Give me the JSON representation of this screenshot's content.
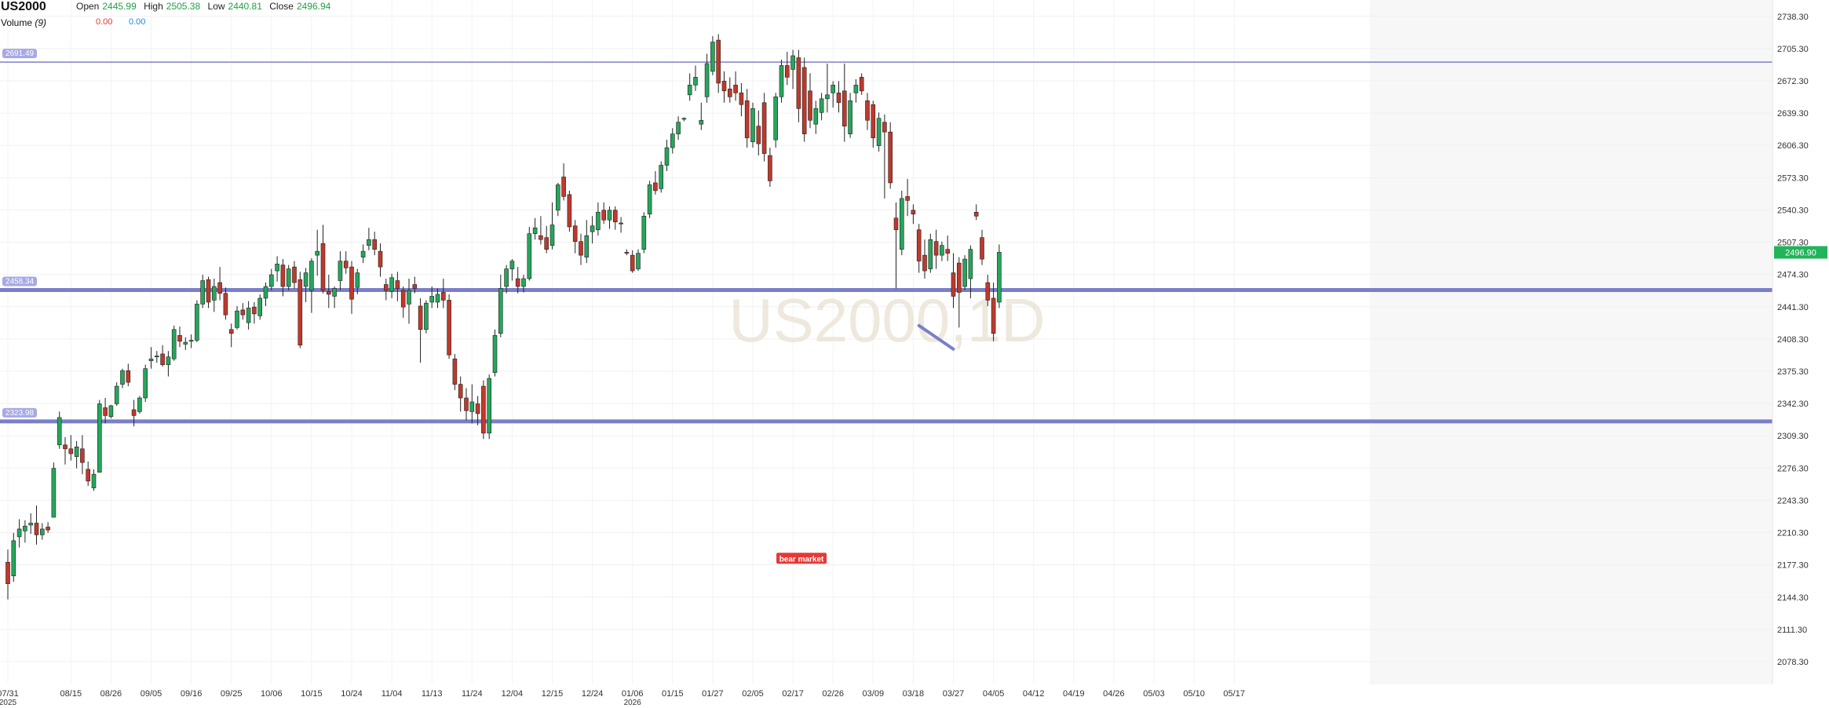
{
  "symbol": "US2000",
  "legend": {
    "open_label": "Open",
    "open_value": "2445.99",
    "high_label": "High",
    "high_value": "2505.38",
    "low_label": "Low",
    "low_value": "2440.81",
    "close_label": "Close",
    "close_value": "2496.94",
    "volume_label": "Volume",
    "volume_length": "(9)",
    "volume_value_1": "0.00",
    "volume_value_2": "0.00"
  },
  "watermark": "US2000,1D",
  "colors": {
    "up": "#26a65b",
    "down": "#c0392b",
    "level": "#7b7fc9",
    "price_tag": "#22b45a",
    "annotation_bg": "#e53935"
  },
  "chart_data": {
    "type": "candlestick",
    "ylim": [
      2055,
      2755
    ],
    "y_ticks": [
      "2738.30",
      "2705.30",
      "2672.30",
      "2639.30",
      "2606.30",
      "2573.30",
      "2540.30",
      "2507.30",
      "2474.30",
      "2441.30",
      "2408.30",
      "2375.30",
      "2342.30",
      "2309.30",
      "2276.30",
      "2243.30",
      "2210.30",
      "2177.30",
      "2144.30",
      "2111.30",
      "2078.30"
    ],
    "x_ticks": [
      {
        "label": "07/31",
        "sub": "2025",
        "i": 0
      },
      {
        "label": "08/15",
        "i": 11
      },
      {
        "label": "08/26",
        "i": 18
      },
      {
        "label": "09/05",
        "i": 25
      },
      {
        "label": "09/16",
        "i": 32
      },
      {
        "label": "09/25",
        "i": 39
      },
      {
        "label": "10/06",
        "i": 46
      },
      {
        "label": "10/15",
        "i": 53
      },
      {
        "label": "10/24",
        "i": 60
      },
      {
        "label": "11/04",
        "i": 67
      },
      {
        "label": "11/13",
        "i": 74
      },
      {
        "label": "11/24",
        "i": 81
      },
      {
        "label": "12/04",
        "i": 88
      },
      {
        "label": "12/15",
        "i": 95
      },
      {
        "label": "12/24",
        "i": 102
      },
      {
        "label": "01/06",
        "sub": "2026",
        "i": 109
      },
      {
        "label": "01/15",
        "i": 116
      },
      {
        "label": "01/27",
        "i": 123
      },
      {
        "label": "02/05",
        "i": 130
      },
      {
        "label": "02/17",
        "i": 137
      },
      {
        "label": "02/26",
        "i": 144
      },
      {
        "label": "03/09",
        "i": 151
      },
      {
        "label": "03/18",
        "i": 158
      },
      {
        "label": "03/27",
        "i": 165
      },
      {
        "label": "04/05",
        "i": 172
      },
      {
        "label": "04/12",
        "i": 179
      },
      {
        "label": "04/19",
        "i": 186
      },
      {
        "label": "04/26",
        "i": 193
      },
      {
        "label": "05/03",
        "i": 200
      },
      {
        "label": "05/10",
        "i": 207
      },
      {
        "label": "05/17",
        "i": 214
      }
    ],
    "levels": [
      {
        "label": "2691.49",
        "value": 2691.49,
        "width": "thin"
      },
      {
        "label": "2458.34",
        "value": 2458.34,
        "width": "thick"
      },
      {
        "label": "2323.98",
        "value": 2323.98,
        "width": "thick"
      }
    ],
    "last_price": "2496.90",
    "last_value": 2496.9,
    "trendline": {
      "from": {
        "i": 159.0,
        "v": 2422
      },
      "to": {
        "i": 165.0,
        "v": 2398
      }
    },
    "annotations": [
      {
        "text": "bear market",
        "i": 138.5,
        "v": 2184
      }
    ],
    "candles": [
      {
        "o": 2180,
        "h": 2193,
        "l": 2142,
        "c": 2158
      },
      {
        "o": 2166,
        "h": 2210,
        "l": 2160,
        "c": 2202
      },
      {
        "o": 2206,
        "h": 2224,
        "l": 2195,
        "c": 2214
      },
      {
        "o": 2212,
        "h": 2223,
        "l": 2200,
        "c": 2217
      },
      {
        "o": 2218,
        "h": 2230,
        "l": 2209,
        "c": 2220
      },
      {
        "o": 2220,
        "h": 2238,
        "l": 2198,
        "c": 2208
      },
      {
        "o": 2208,
        "h": 2220,
        "l": 2203,
        "c": 2214
      },
      {
        "o": 2216,
        "h": 2221,
        "l": 2210,
        "c": 2213
      },
      {
        "o": 2226,
        "h": 2282,
        "l": 2226,
        "c": 2276
      },
      {
        "o": 2300,
        "h": 2334,
        "l": 2296,
        "c": 2328
      },
      {
        "o": 2300,
        "h": 2308,
        "l": 2280,
        "c": 2296
      },
      {
        "o": 2296,
        "h": 2310,
        "l": 2284,
        "c": 2291
      },
      {
        "o": 2288,
        "h": 2304,
        "l": 2276,
        "c": 2298
      },
      {
        "o": 2296,
        "h": 2310,
        "l": 2270,
        "c": 2282
      },
      {
        "o": 2275,
        "h": 2283,
        "l": 2258,
        "c": 2263
      },
      {
        "o": 2256,
        "h": 2275,
        "l": 2253,
        "c": 2270
      },
      {
        "o": 2272,
        "h": 2346,
        "l": 2272,
        "c": 2342
      },
      {
        "o": 2338,
        "h": 2348,
        "l": 2322,
        "c": 2330
      },
      {
        "o": 2329,
        "h": 2341,
        "l": 2327,
        "c": 2340
      },
      {
        "o": 2342,
        "h": 2364,
        "l": 2340,
        "c": 2360
      },
      {
        "o": 2362,
        "h": 2378,
        "l": 2358,
        "c": 2376
      },
      {
        "o": 2376,
        "h": 2383,
        "l": 2360,
        "c": 2364
      },
      {
        "o": 2336,
        "h": 2346,
        "l": 2319,
        "c": 2330
      },
      {
        "o": 2334,
        "h": 2350,
        "l": 2332,
        "c": 2348
      },
      {
        "o": 2348,
        "h": 2382,
        "l": 2344,
        "c": 2378
      },
      {
        "o": 2386,
        "h": 2400,
        "l": 2378,
        "c": 2388
      },
      {
        "o": 2390,
        "h": 2396,
        "l": 2384,
        "c": 2391
      },
      {
        "o": 2393,
        "h": 2402,
        "l": 2380,
        "c": 2382
      },
      {
        "o": 2382,
        "h": 2396,
        "l": 2370,
        "c": 2390
      },
      {
        "o": 2388,
        "h": 2422,
        "l": 2386,
        "c": 2418
      },
      {
        "o": 2412,
        "h": 2421,
        "l": 2400,
        "c": 2406
      },
      {
        "o": 2403,
        "h": 2410,
        "l": 2397,
        "c": 2405
      },
      {
        "o": 2406,
        "h": 2413,
        "l": 2399,
        "c": 2407
      },
      {
        "o": 2407,
        "h": 2448,
        "l": 2405,
        "c": 2444
      },
      {
        "o": 2444,
        "h": 2474,
        "l": 2440,
        "c": 2468
      },
      {
        "o": 2469,
        "h": 2472,
        "l": 2440,
        "c": 2446
      },
      {
        "o": 2448,
        "h": 2470,
        "l": 2436,
        "c": 2462
      },
      {
        "o": 2466,
        "h": 2482,
        "l": 2448,
        "c": 2455
      },
      {
        "o": 2455,
        "h": 2461,
        "l": 2428,
        "c": 2433
      },
      {
        "o": 2418,
        "h": 2424,
        "l": 2400,
        "c": 2414
      },
      {
        "o": 2420,
        "h": 2442,
        "l": 2418,
        "c": 2437
      },
      {
        "o": 2438,
        "h": 2445,
        "l": 2428,
        "c": 2433
      },
      {
        "o": 2425,
        "h": 2447,
        "l": 2418,
        "c": 2440
      },
      {
        "o": 2441,
        "h": 2446,
        "l": 2424,
        "c": 2434
      },
      {
        "o": 2432,
        "h": 2454,
        "l": 2428,
        "c": 2450
      },
      {
        "o": 2450,
        "h": 2466,
        "l": 2442,
        "c": 2462
      },
      {
        "o": 2462,
        "h": 2480,
        "l": 2458,
        "c": 2474
      },
      {
        "o": 2478,
        "h": 2493,
        "l": 2467,
        "c": 2485
      },
      {
        "o": 2484,
        "h": 2490,
        "l": 2452,
        "c": 2462
      },
      {
        "o": 2462,
        "h": 2484,
        "l": 2458,
        "c": 2480
      },
      {
        "o": 2482,
        "h": 2488,
        "l": 2460,
        "c": 2466
      },
      {
        "o": 2469,
        "h": 2477,
        "l": 2399,
        "c": 2402
      },
      {
        "o": 2462,
        "h": 2481,
        "l": 2446,
        "c": 2476
      },
      {
        "o": 2458,
        "h": 2491,
        "l": 2435,
        "c": 2488
      },
      {
        "o": 2494,
        "h": 2520,
        "l": 2473,
        "c": 2498
      },
      {
        "o": 2506,
        "h": 2525,
        "l": 2455,
        "c": 2458
      },
      {
        "o": 2457,
        "h": 2474,
        "l": 2440,
        "c": 2454
      },
      {
        "o": 2452,
        "h": 2462,
        "l": 2440,
        "c": 2460
      },
      {
        "o": 2468,
        "h": 2498,
        "l": 2458,
        "c": 2488
      },
      {
        "o": 2488,
        "h": 2498,
        "l": 2475,
        "c": 2481
      },
      {
        "o": 2482,
        "h": 2488,
        "l": 2434,
        "c": 2449
      },
      {
        "o": 2461,
        "h": 2480,
        "l": 2454,
        "c": 2476
      },
      {
        "o": 2492,
        "h": 2505,
        "l": 2486,
        "c": 2498
      },
      {
        "o": 2504,
        "h": 2522,
        "l": 2499,
        "c": 2510
      },
      {
        "o": 2510,
        "h": 2518,
        "l": 2494,
        "c": 2500
      },
      {
        "o": 2498,
        "h": 2506,
        "l": 2472,
        "c": 2482
      },
      {
        "o": 2464,
        "h": 2470,
        "l": 2448,
        "c": 2458
      },
      {
        "o": 2457,
        "h": 2475,
        "l": 2450,
        "c": 2471
      },
      {
        "o": 2468,
        "h": 2477,
        "l": 2447,
        "c": 2460
      },
      {
        "o": 2458,
        "h": 2462,
        "l": 2430,
        "c": 2441
      },
      {
        "o": 2444,
        "h": 2470,
        "l": 2424,
        "c": 2458
      },
      {
        "o": 2464,
        "h": 2472,
        "l": 2455,
        "c": 2460
      },
      {
        "o": 2442,
        "h": 2450,
        "l": 2384,
        "c": 2418
      },
      {
        "o": 2418,
        "h": 2448,
        "l": 2414,
        "c": 2445
      },
      {
        "o": 2446,
        "h": 2462,
        "l": 2440,
        "c": 2452
      },
      {
        "o": 2446,
        "h": 2460,
        "l": 2440,
        "c": 2454
      },
      {
        "o": 2456,
        "h": 2470,
        "l": 2440,
        "c": 2448
      },
      {
        "o": 2448,
        "h": 2454,
        "l": 2388,
        "c": 2392
      },
      {
        "o": 2388,
        "h": 2393,
        "l": 2356,
        "c": 2362
      },
      {
        "o": 2362,
        "h": 2370,
        "l": 2334,
        "c": 2348
      },
      {
        "o": 2348,
        "h": 2358,
        "l": 2325,
        "c": 2335
      },
      {
        "o": 2334,
        "h": 2362,
        "l": 2322,
        "c": 2344
      },
      {
        "o": 2342,
        "h": 2350,
        "l": 2320,
        "c": 2332
      },
      {
        "o": 2360,
        "h": 2366,
        "l": 2306,
        "c": 2312
      },
      {
        "o": 2312,
        "h": 2372,
        "l": 2306,
        "c": 2368
      },
      {
        "o": 2374,
        "h": 2418,
        "l": 2370,
        "c": 2412
      },
      {
        "o": 2414,
        "h": 2474,
        "l": 2410,
        "c": 2460
      },
      {
        "o": 2462,
        "h": 2484,
        "l": 2455,
        "c": 2480
      },
      {
        "o": 2480,
        "h": 2490,
        "l": 2468,
        "c": 2488
      },
      {
        "o": 2470,
        "h": 2482,
        "l": 2455,
        "c": 2462
      },
      {
        "o": 2462,
        "h": 2474,
        "l": 2456,
        "c": 2470
      },
      {
        "o": 2470,
        "h": 2523,
        "l": 2468,
        "c": 2516
      },
      {
        "o": 2516,
        "h": 2532,
        "l": 2510,
        "c": 2522
      },
      {
        "o": 2514,
        "h": 2534,
        "l": 2505,
        "c": 2510
      },
      {
        "o": 2512,
        "h": 2524,
        "l": 2496,
        "c": 2500
      },
      {
        "o": 2504,
        "h": 2548,
        "l": 2500,
        "c": 2525
      },
      {
        "o": 2540,
        "h": 2568,
        "l": 2534,
        "c": 2566
      },
      {
        "o": 2574,
        "h": 2588,
        "l": 2550,
        "c": 2554
      },
      {
        "o": 2556,
        "h": 2560,
        "l": 2518,
        "c": 2523
      },
      {
        "o": 2524,
        "h": 2530,
        "l": 2496,
        "c": 2508
      },
      {
        "o": 2508,
        "h": 2516,
        "l": 2484,
        "c": 2494
      },
      {
        "o": 2492,
        "h": 2530,
        "l": 2486,
        "c": 2514
      },
      {
        "o": 2518,
        "h": 2534,
        "l": 2506,
        "c": 2524
      },
      {
        "o": 2520,
        "h": 2548,
        "l": 2514,
        "c": 2538
      },
      {
        "o": 2540,
        "h": 2548,
        "l": 2526,
        "c": 2530
      },
      {
        "o": 2530,
        "h": 2544,
        "l": 2521,
        "c": 2540
      },
      {
        "o": 2540,
        "h": 2544,
        "l": 2520,
        "c": 2528
      },
      {
        "o": 2527,
        "h": 2533,
        "l": 2517,
        "c": 2526
      },
      {
        "o": 2497,
        "h": 2500,
        "l": 2494,
        "c": 2496
      },
      {
        "o": 2494,
        "h": 2499,
        "l": 2476,
        "c": 2478
      },
      {
        "o": 2480,
        "h": 2500,
        "l": 2478,
        "c": 2496
      },
      {
        "o": 2500,
        "h": 2538,
        "l": 2496,
        "c": 2534
      },
      {
        "o": 2536,
        "h": 2570,
        "l": 2532,
        "c": 2566
      },
      {
        "o": 2568,
        "h": 2580,
        "l": 2556,
        "c": 2560
      },
      {
        "o": 2562,
        "h": 2590,
        "l": 2558,
        "c": 2586
      },
      {
        "o": 2586,
        "h": 2612,
        "l": 2580,
        "c": 2604
      },
      {
        "o": 2604,
        "h": 2624,
        "l": 2598,
        "c": 2618
      },
      {
        "o": 2618,
        "h": 2636,
        "l": 2612,
        "c": 2630
      },
      {
        "o": 2633,
        "h": 2635,
        "l": 2631,
        "c": 2634
      },
      {
        "o": 2658,
        "h": 2680,
        "l": 2652,
        "c": 2668
      },
      {
        "o": 2668,
        "h": 2688,
        "l": 2662,
        "c": 2676
      },
      {
        "o": 2628,
        "h": 2650,
        "l": 2622,
        "c": 2632
      },
      {
        "o": 2656,
        "h": 2700,
        "l": 2650,
        "c": 2690
      },
      {
        "o": 2682,
        "h": 2718,
        "l": 2678,
        "c": 2712
      },
      {
        "o": 2714,
        "h": 2720,
        "l": 2660,
        "c": 2670
      },
      {
        "o": 2672,
        "h": 2682,
        "l": 2650,
        "c": 2662
      },
      {
        "o": 2664,
        "h": 2676,
        "l": 2650,
        "c": 2656
      },
      {
        "o": 2668,
        "h": 2682,
        "l": 2652,
        "c": 2660
      },
      {
        "o": 2660,
        "h": 2670,
        "l": 2636,
        "c": 2648
      },
      {
        "o": 2652,
        "h": 2664,
        "l": 2604,
        "c": 2614
      },
      {
        "o": 2610,
        "h": 2650,
        "l": 2604,
        "c": 2644
      },
      {
        "o": 2626,
        "h": 2642,
        "l": 2596,
        "c": 2608
      },
      {
        "o": 2650,
        "h": 2660,
        "l": 2590,
        "c": 2598
      },
      {
        "o": 2596,
        "h": 2604,
        "l": 2564,
        "c": 2570
      },
      {
        "o": 2612,
        "h": 2660,
        "l": 2604,
        "c": 2656
      },
      {
        "o": 2656,
        "h": 2694,
        "l": 2650,
        "c": 2688
      },
      {
        "o": 2688,
        "h": 2702,
        "l": 2668,
        "c": 2676
      },
      {
        "o": 2684,
        "h": 2704,
        "l": 2664,
        "c": 2698
      },
      {
        "o": 2696,
        "h": 2704,
        "l": 2630,
        "c": 2644
      },
      {
        "o": 2686,
        "h": 2696,
        "l": 2610,
        "c": 2618
      },
      {
        "o": 2662,
        "h": 2680,
        "l": 2624,
        "c": 2632
      },
      {
        "o": 2628,
        "h": 2652,
        "l": 2618,
        "c": 2644
      },
      {
        "o": 2640,
        "h": 2660,
        "l": 2632,
        "c": 2654
      },
      {
        "o": 2654,
        "h": 2690,
        "l": 2640,
        "c": 2658
      },
      {
        "o": 2660,
        "h": 2672,
        "l": 2645,
        "c": 2668
      },
      {
        "o": 2660,
        "h": 2672,
        "l": 2640,
        "c": 2650
      },
      {
        "o": 2662,
        "h": 2690,
        "l": 2610,
        "c": 2626
      },
      {
        "o": 2618,
        "h": 2660,
        "l": 2614,
        "c": 2652
      },
      {
        "o": 2660,
        "h": 2674,
        "l": 2650,
        "c": 2668
      },
      {
        "o": 2676,
        "h": 2680,
        "l": 2658,
        "c": 2662
      },
      {
        "o": 2652,
        "h": 2660,
        "l": 2622,
        "c": 2632
      },
      {
        "o": 2648,
        "h": 2652,
        "l": 2604,
        "c": 2614
      },
      {
        "o": 2606,
        "h": 2640,
        "l": 2600,
        "c": 2634
      },
      {
        "o": 2630,
        "h": 2638,
        "l": 2552,
        "c": 2620
      },
      {
        "o": 2620,
        "h": 2630,
        "l": 2562,
        "c": 2568
      },
      {
        "o": 2532,
        "h": 2548,
        "l": 2460,
        "c": 2520
      },
      {
        "o": 2500,
        "h": 2560,
        "l": 2494,
        "c": 2552
      },
      {
        "o": 2554,
        "h": 2572,
        "l": 2534,
        "c": 2550
      },
      {
        "o": 2540,
        "h": 2546,
        "l": 2526,
        "c": 2536
      },
      {
        "o": 2520,
        "h": 2526,
        "l": 2476,
        "c": 2488
      },
      {
        "o": 2494,
        "h": 2510,
        "l": 2470,
        "c": 2478
      },
      {
        "o": 2480,
        "h": 2516,
        "l": 2476,
        "c": 2510
      },
      {
        "o": 2508,
        "h": 2520,
        "l": 2480,
        "c": 2494
      },
      {
        "o": 2494,
        "h": 2508,
        "l": 2488,
        "c": 2504
      },
      {
        "o": 2500,
        "h": 2514,
        "l": 2488,
        "c": 2496
      },
      {
        "o": 2476,
        "h": 2496,
        "l": 2440,
        "c": 2452
      },
      {
        "o": 2486,
        "h": 2492,
        "l": 2420,
        "c": 2456
      },
      {
        "o": 2462,
        "h": 2494,
        "l": 2458,
        "c": 2490
      },
      {
        "o": 2470,
        "h": 2504,
        "l": 2450,
        "c": 2500
      },
      {
        "o": 2538,
        "h": 2546,
        "l": 2530,
        "c": 2534
      },
      {
        "o": 2512,
        "h": 2520,
        "l": 2484,
        "c": 2490
      },
      {
        "o": 2466,
        "h": 2474,
        "l": 2442,
        "c": 2448
      },
      {
        "o": 2450,
        "h": 2466,
        "l": 2406,
        "c": 2414
      },
      {
        "o": 2446,
        "h": 2505,
        "l": 2440,
        "c": 2497
      }
    ]
  }
}
